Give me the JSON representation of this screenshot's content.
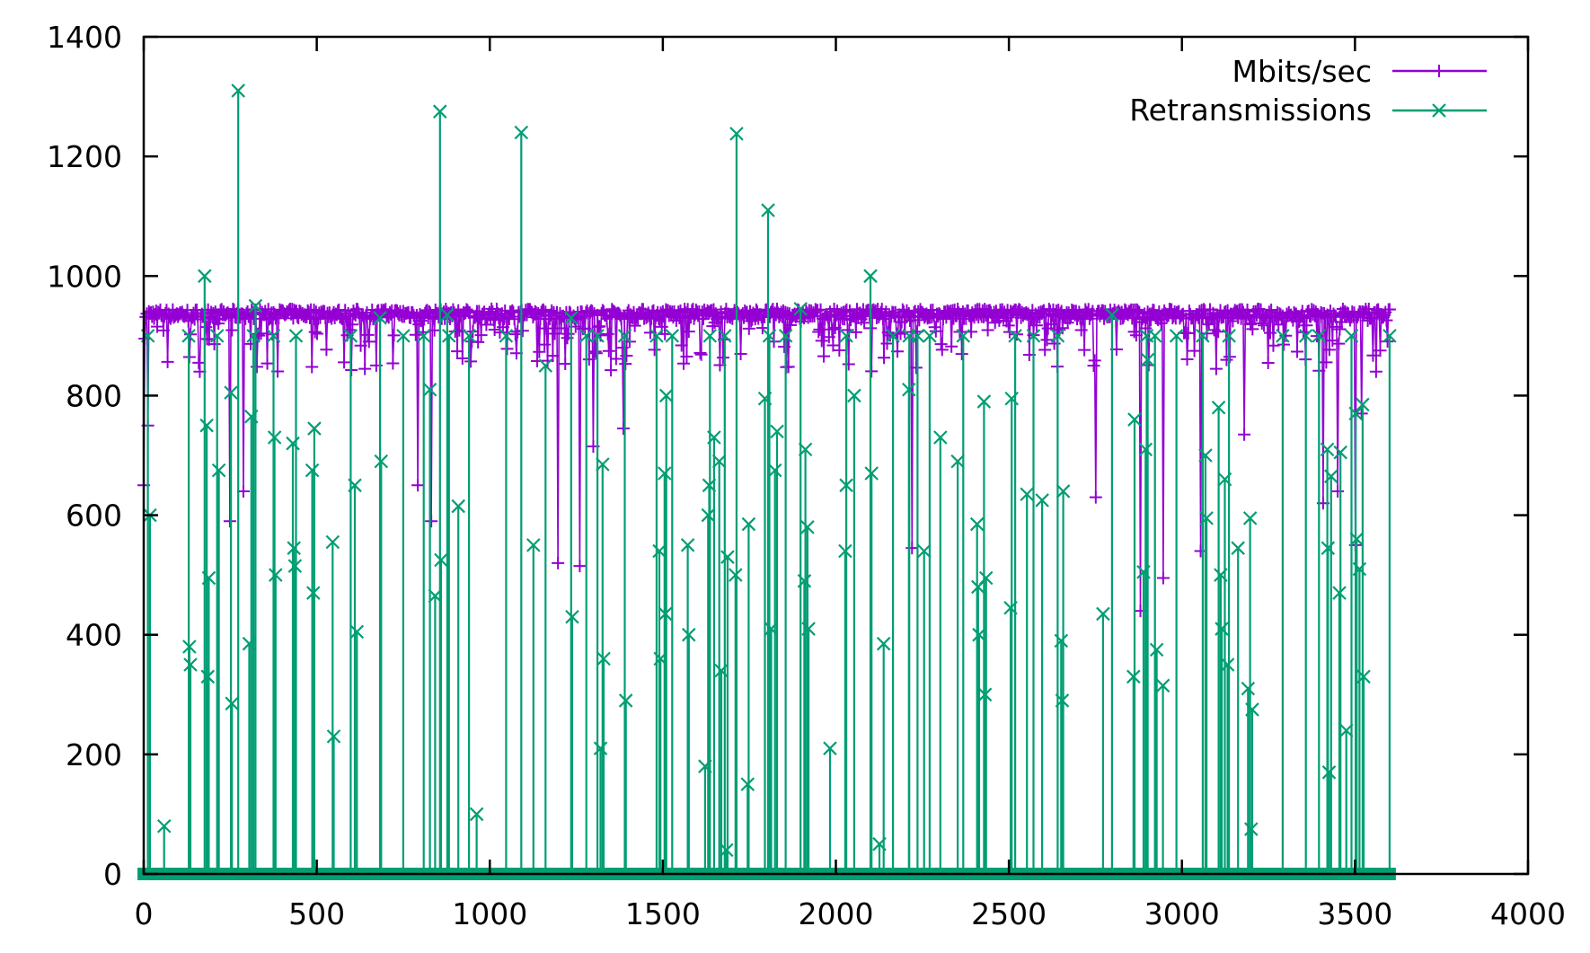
{
  "chart_data": {
    "type": "line",
    "title": "",
    "xlabel": "",
    "ylabel": "",
    "xlim": [
      0,
      4000
    ],
    "ylim": [
      0,
      1400
    ],
    "x_ticks": [
      "0",
      "500",
      "1000",
      "1500",
      "2000",
      "2500",
      "3000",
      "3500",
      "4000"
    ],
    "y_ticks": [
      "0",
      "200",
      "400",
      "600",
      "800",
      "1000",
      "1200",
      "1400"
    ],
    "grid": false,
    "legend_position": "top-right",
    "series": [
      {
        "name": "Mbits/sec",
        "color": "#9400d3",
        "marker": "plus",
        "x_range": [
          0,
          3600
        ],
        "typical_value": 935,
        "typical_band": [
          840,
          945
        ],
        "dips": [
          [
            0,
            650
          ],
          [
            12,
            750
          ],
          [
            287,
            640
          ],
          [
            250,
            590
          ],
          [
            792,
            650
          ],
          [
            832,
            590
          ],
          [
            1197,
            520
          ],
          [
            1261,
            515
          ],
          [
            1300,
            715
          ],
          [
            1385,
            745
          ],
          [
            2220,
            545
          ],
          [
            2751,
            630
          ],
          [
            2880,
            440
          ],
          [
            2945,
            495
          ],
          [
            3053,
            540
          ],
          [
            3180,
            735
          ],
          [
            3408,
            620
          ],
          [
            3450,
            640
          ],
          [
            3502,
            550
          ],
          [
            3520,
            770
          ],
          [
            3560,
            840
          ]
        ]
      },
      {
        "name": "Retransmissions",
        "color": "#009e73",
        "marker": "cross",
        "x_range": [
          0,
          3600
        ],
        "baseline": 0,
        "spikes": [
          [
            12,
            900
          ],
          [
            18,
            600
          ],
          [
            59,
            80
          ],
          [
            132,
            380
          ],
          [
            135,
            350
          ],
          [
            176,
            1000
          ],
          [
            182,
            750
          ],
          [
            188,
            495
          ],
          [
            185,
            330
          ],
          [
            217,
            675
          ],
          [
            252,
            805
          ],
          [
            255,
            285
          ],
          [
            273,
            1310
          ],
          [
            305,
            385
          ],
          [
            311,
            765
          ],
          [
            323,
            950
          ],
          [
            378,
            730
          ],
          [
            381,
            500
          ],
          [
            431,
            720
          ],
          [
            434,
            545
          ],
          [
            437,
            515
          ],
          [
            487,
            675
          ],
          [
            493,
            745
          ],
          [
            490,
            470
          ],
          [
            546,
            555
          ],
          [
            549,
            230
          ],
          [
            610,
            650
          ],
          [
            616,
            405
          ],
          [
            683,
            930
          ],
          [
            686,
            690
          ],
          [
            827,
            810
          ],
          [
            842,
            465
          ],
          [
            856,
            1275
          ],
          [
            859,
            525
          ],
          [
            877,
            935
          ],
          [
            909,
            615
          ],
          [
            962,
            100
          ],
          [
            1091,
            1240
          ],
          [
            1126,
            550
          ],
          [
            1161,
            850
          ],
          [
            1235,
            930
          ],
          [
            1238,
            430
          ],
          [
            1279,
            900
          ],
          [
            1320,
            210
          ],
          [
            1326,
            685
          ],
          [
            1329,
            360
          ],
          [
            1393,
            290
          ],
          [
            1490,
            540
          ],
          [
            1493,
            360
          ],
          [
            1505,
            670
          ],
          [
            1507,
            435
          ],
          [
            1510,
            800
          ],
          [
            1572,
            550
          ],
          [
            1575,
            400
          ],
          [
            1622,
            180
          ],
          [
            1631,
            600
          ],
          [
            1634,
            650
          ],
          [
            1648,
            730
          ],
          [
            1663,
            690
          ],
          [
            1669,
            340
          ],
          [
            1684,
            40
          ],
          [
            1687,
            530
          ],
          [
            1710,
            500
          ],
          [
            1713,
            1238
          ],
          [
            1745,
            150
          ],
          [
            1748,
            585
          ],
          [
            1795,
            795
          ],
          [
            1804,
            1110
          ],
          [
            1813,
            410
          ],
          [
            1824,
            675
          ],
          [
            1830,
            740
          ],
          [
            1898,
            945
          ],
          [
            1909,
            490
          ],
          [
            1912,
            710
          ],
          [
            1918,
            580
          ],
          [
            1921,
            410
          ],
          [
            1983,
            210
          ],
          [
            2027,
            540
          ],
          [
            2030,
            650
          ],
          [
            2053,
            800
          ],
          [
            2100,
            1000
          ],
          [
            2103,
            670
          ],
          [
            2126,
            50
          ],
          [
            2138,
            385
          ],
          [
            2211,
            810
          ],
          [
            2255,
            540
          ],
          [
            2302,
            730
          ],
          [
            2352,
            690
          ],
          [
            2408,
            585
          ],
          [
            2411,
            480
          ],
          [
            2414,
            400
          ],
          [
            2428,
            790
          ],
          [
            2431,
            300
          ],
          [
            2434,
            495
          ],
          [
            2505,
            445
          ],
          [
            2508,
            795
          ],
          [
            2552,
            635
          ],
          [
            2596,
            625
          ],
          [
            2651,
            390
          ],
          [
            2654,
            290
          ],
          [
            2657,
            640
          ],
          [
            2772,
            435
          ],
          [
            2798,
            935
          ],
          [
            2860,
            330
          ],
          [
            2863,
            760
          ],
          [
            2889,
            505
          ],
          [
            2895,
            710
          ],
          [
            2901,
            860
          ],
          [
            2927,
            375
          ],
          [
            2945,
            315
          ],
          [
            3068,
            700
          ],
          [
            3071,
            595
          ],
          [
            3106,
            780
          ],
          [
            3112,
            500
          ],
          [
            3115,
            410
          ],
          [
            3124,
            660
          ],
          [
            3132,
            350
          ],
          [
            3162,
            545
          ],
          [
            3191,
            310
          ],
          [
            3197,
            595
          ],
          [
            3200,
            75
          ],
          [
            3203,
            275
          ],
          [
            3420,
            710
          ],
          [
            3422,
            545
          ],
          [
            3425,
            170
          ],
          [
            3431,
            665
          ],
          [
            3455,
            470
          ],
          [
            3458,
            705
          ],
          [
            3475,
            240
          ],
          [
            3502,
            770
          ],
          [
            3505,
            560
          ],
          [
            3513,
            510
          ],
          [
            3522,
            785
          ],
          [
            3525,
            330
          ],
          [
            3600,
            900
          ],
          [
            130,
            900
          ],
          [
            212,
            900
          ],
          [
            317,
            900
          ],
          [
            375,
            900
          ],
          [
            440,
            900
          ],
          [
            598,
            900
          ],
          [
            750,
            900
          ],
          [
            809,
            900
          ],
          [
            882,
            900
          ],
          [
            940,
            900
          ],
          [
            1047,
            900
          ],
          [
            1311,
            900
          ],
          [
            1390,
            900
          ],
          [
            1482,
            900
          ],
          [
            1527,
            900
          ],
          [
            1636,
            900
          ],
          [
            1679,
            900
          ],
          [
            1808,
            900
          ],
          [
            1855,
            900
          ],
          [
            2030,
            900
          ],
          [
            2165,
            900
          ],
          [
            2212,
            900
          ],
          [
            2236,
            900
          ],
          [
            2271,
            900
          ],
          [
            2368,
            900
          ],
          [
            2518,
            900
          ],
          [
            2571,
            900
          ],
          [
            2641,
            900
          ],
          [
            2898,
            900
          ],
          [
            2922,
            900
          ],
          [
            2984,
            900
          ],
          [
            3060,
            900
          ],
          [
            3136,
            900
          ],
          [
            3291,
            900
          ],
          [
            3358,
            900
          ],
          [
            3396,
            900
          ],
          [
            3490,
            900
          ]
        ]
      }
    ]
  }
}
